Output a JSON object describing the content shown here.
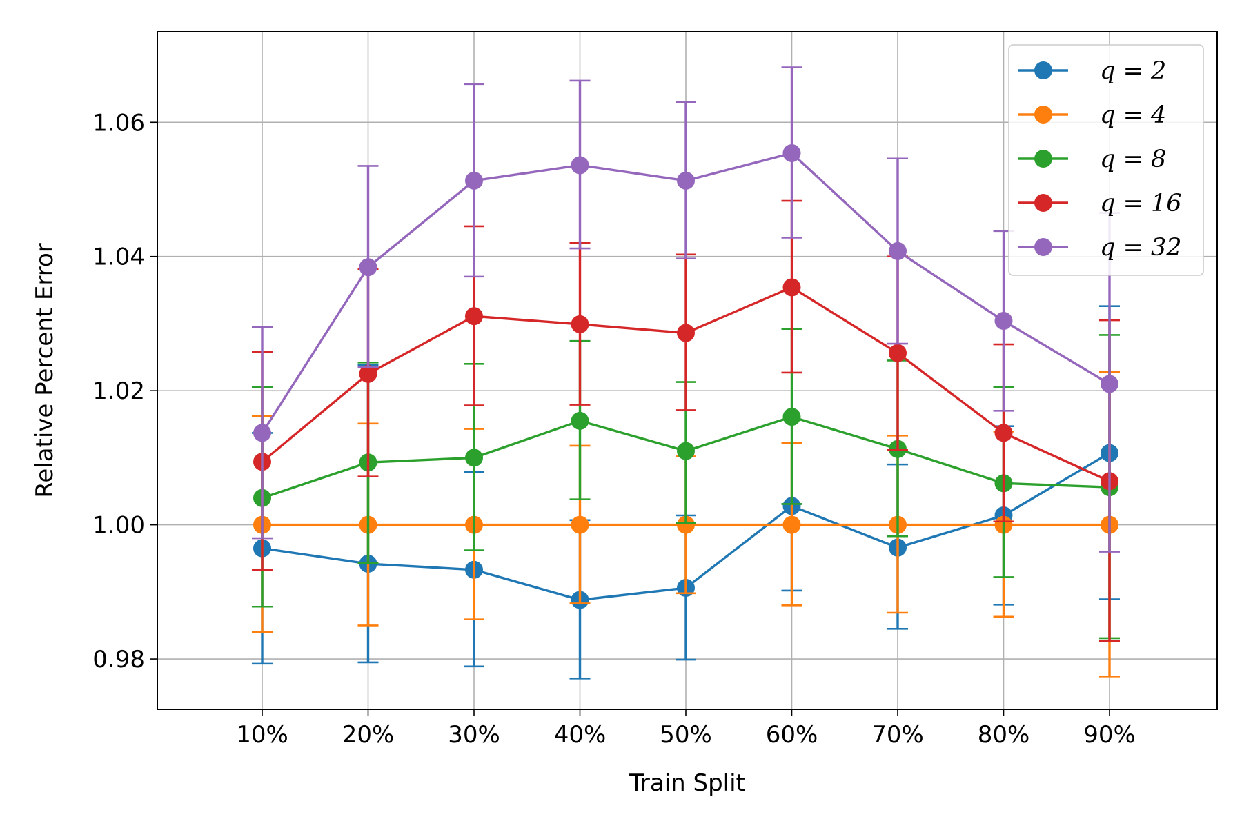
{
  "chart_data": {
    "type": "line",
    "xlabel": "Train Split",
    "ylabel": "Relative Percent Error",
    "categories": [
      "10%",
      "20%",
      "30%",
      "40%",
      "50%",
      "60%",
      "70%",
      "80%",
      "90%"
    ],
    "ylim": [
      0.9725,
      1.0735
    ],
    "yticks": [
      0.98,
      1.0,
      1.02,
      1.04,
      1.06
    ],
    "ytick_labels": [
      "0.98",
      "1.00",
      "1.02",
      "1.04",
      "1.06"
    ],
    "grid": true,
    "legend_position": "top-right",
    "error_bars": true,
    "series": [
      {
        "name": "q = 2",
        "color": "#1f77b4",
        "values": [
          0.9965,
          0.9942,
          0.9933,
          0.9888,
          0.9906,
          1.0028,
          0.9966,
          1.0014,
          1.0107
        ],
        "err_low": [
          0.9793,
          0.9795,
          0.9789,
          0.9771,
          0.9799,
          0.9902,
          0.9845,
          0.9881,
          0.9889
        ],
        "err_high": [
          1.0137,
          1.0238,
          1.0079,
          1.0007,
          1.0014,
          1.0031,
          1.009,
          1.0147,
          1.0326
        ]
      },
      {
        "name": "q = 4",
        "color": "#ff7f0e",
        "values": [
          1.0,
          1.0,
          1.0,
          1.0,
          1.0,
          1.0,
          1.0,
          1.0,
          1.0
        ],
        "err_low": [
          0.984,
          0.985,
          0.9859,
          0.9883,
          0.9898,
          0.988,
          0.9869,
          0.9863,
          0.9774
        ],
        "err_high": [
          1.0162,
          1.0151,
          1.0143,
          1.0118,
          1.0102,
          1.0122,
          1.0133,
          1.0139,
          1.0228
        ]
      },
      {
        "name": "q = 8",
        "color": "#2ca02c",
        "values": [
          1.004,
          1.0093,
          1.01,
          1.0155,
          1.011,
          1.0161,
          1.0113,
          1.0062,
          1.0056
        ],
        "err_low": [
          0.9878,
          0.9943,
          0.9962,
          1.0038,
          1.0003,
          1.0031,
          0.9983,
          0.9922,
          0.9831
        ],
        "err_high": [
          1.0205,
          1.0242,
          1.024,
          1.0274,
          1.0213,
          1.0292,
          1.0245,
          1.0205,
          1.0283
        ]
      },
      {
        "name": "q = 16",
        "color": "#d62728",
        "values": [
          1.0094,
          1.0225,
          1.0311,
          1.0299,
          1.0286,
          1.0354,
          1.0256,
          1.0137,
          1.0065
        ],
        "err_low": [
          0.9933,
          1.0072,
          1.0178,
          1.0179,
          1.0171,
          1.0227,
          1.0112,
          1.0005,
          0.9827
        ],
        "err_high": [
          1.0258,
          1.0381,
          1.0445,
          1.042,
          1.0403,
          1.0483,
          1.04,
          1.0269,
          1.0305
        ]
      },
      {
        "name": "q = 32",
        "color": "#9467bd",
        "values": [
          1.0137,
          1.0384,
          1.0513,
          1.0536,
          1.0513,
          1.0554,
          1.0408,
          1.0304,
          1.021
        ],
        "err_low": [
          0.998,
          1.0235,
          1.037,
          1.0412,
          1.0397,
          1.0428,
          1.027,
          1.017,
          0.996
        ],
        "err_high": [
          1.0295,
          1.0535,
          1.0657,
          1.0662,
          1.063,
          1.0682,
          1.0546,
          1.0438,
          1.0465
        ]
      }
    ]
  }
}
